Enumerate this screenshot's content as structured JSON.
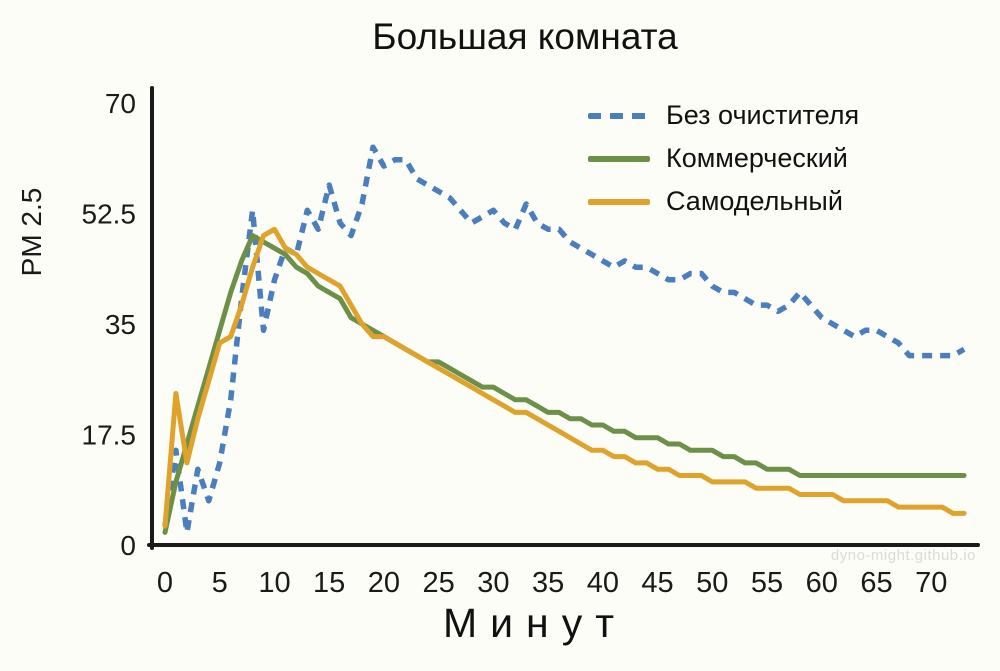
{
  "watermark": "dyno-might.github.io",
  "chart_data": {
    "type": "line",
    "title": "Большая комната",
    "xlabel": "Минут",
    "ylabel": "PM 2.5",
    "xlim": [
      0,
      74
    ],
    "ylim": [
      0,
      70
    ],
    "x_ticks": [
      0,
      5,
      10,
      15,
      20,
      25,
      30,
      35,
      40,
      45,
      50,
      55,
      60,
      65,
      70
    ],
    "y_ticks": [
      0,
      17.5,
      35,
      52.5,
      70
    ],
    "x_start": 0,
    "x_step": 1,
    "grid": false,
    "legend_position": "top-right",
    "axis_color": "#1a1a1a",
    "series": [
      {
        "name": "Без очистителя",
        "color": "#4a7ebd",
        "style": "dashed",
        "values": [
          3,
          15,
          2,
          12,
          7,
          13,
          23,
          39,
          53,
          34,
          42,
          47,
          46,
          53,
          50,
          57,
          51,
          49,
          54,
          63,
          60,
          61,
          61,
          58,
          57,
          56,
          55,
          53,
          51,
          52,
          53,
          51,
          50,
          54,
          51,
          50,
          50,
          48,
          47,
          46,
          45,
          44,
          45,
          44,
          44,
          43,
          42,
          42,
          43,
          43,
          41,
          40,
          40,
          39,
          38,
          38,
          37,
          38,
          40,
          38,
          36,
          35,
          34,
          33,
          34,
          34,
          33,
          32,
          30,
          30,
          30,
          30,
          30,
          31
        ]
      },
      {
        "name": "Коммерческий",
        "color": "#6d9048",
        "style": "solid",
        "values": [
          2,
          10,
          16,
          22,
          28,
          34,
          40,
          45,
          49,
          48,
          47,
          46,
          44,
          43,
          41,
          40,
          39,
          36,
          35,
          34,
          33,
          32,
          31,
          30,
          29,
          29,
          28,
          27,
          26,
          25,
          25,
          24,
          23,
          23,
          22,
          21,
          21,
          20,
          20,
          19,
          19,
          18,
          18,
          17,
          17,
          17,
          16,
          16,
          15,
          15,
          15,
          14,
          14,
          13,
          13,
          12,
          12,
          12,
          11,
          11,
          11,
          11,
          11,
          11,
          11,
          11,
          11,
          11,
          11,
          11,
          11,
          11,
          11,
          11
        ]
      },
      {
        "name": "Самодельный",
        "color": "#dfa32b",
        "style": "solid",
        "values": [
          3,
          24,
          13,
          20,
          26,
          32,
          33,
          38,
          44,
          49,
          50,
          47,
          46,
          44,
          43,
          42,
          41,
          38,
          35,
          33,
          33,
          32,
          31,
          30,
          29,
          28,
          27,
          26,
          25,
          24,
          23,
          22,
          21,
          21,
          20,
          19,
          18,
          17,
          16,
          15,
          15,
          14,
          14,
          13,
          13,
          12,
          12,
          11,
          11,
          11,
          10,
          10,
          10,
          10,
          9,
          9,
          9,
          9,
          8,
          8,
          8,
          8,
          7,
          7,
          7,
          7,
          7,
          6,
          6,
          6,
          6,
          6,
          5,
          5
        ]
      }
    ]
  }
}
